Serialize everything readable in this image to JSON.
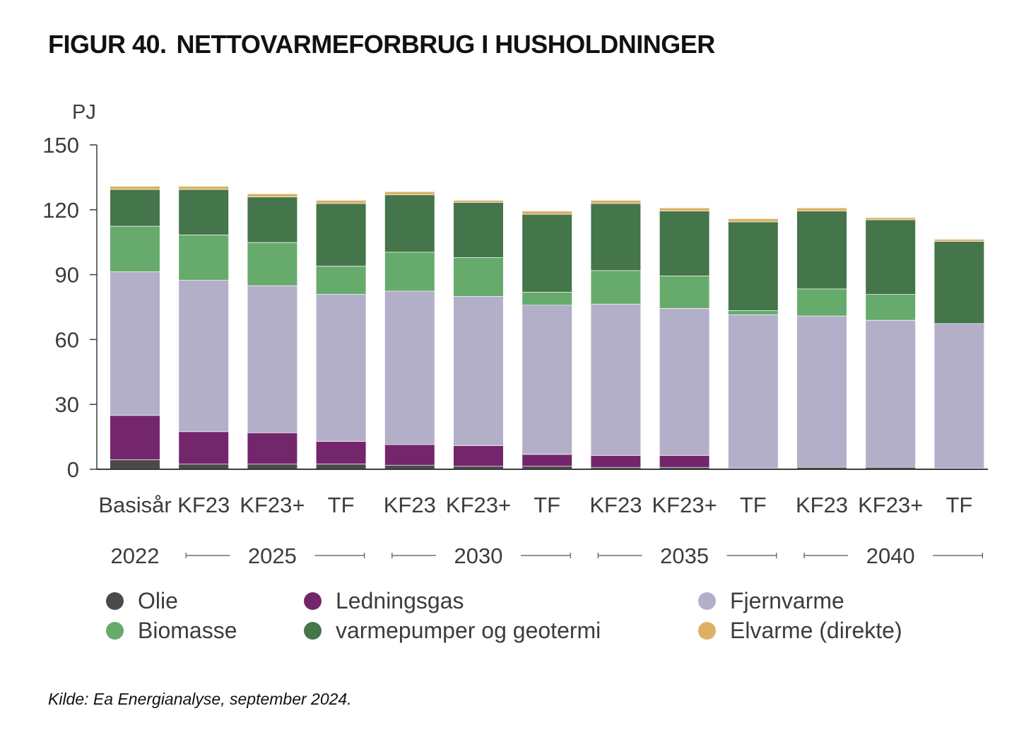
{
  "title": {
    "figure": "FIGUR 40.",
    "text": "NETTOVARMEFORBRUG I HUSHOLDNINGER"
  },
  "source": "Kilde: Ea Energianalyse, september 2024.",
  "colors": {
    "Olie": "#4a4a4a",
    "Ledningsgas": "#74266c",
    "Fjernvarme": "#b3afc9",
    "Biomasse": "#67ab6c",
    "varmepumper og geotermi": "#45754a",
    "Elvarme (direkte)": "#ddb068",
    "axis": "#3c3c3c",
    "group_line": "#555555"
  },
  "chart_data": {
    "type": "bar",
    "stacked": true,
    "ylabel": "PJ",
    "ylim": [
      0,
      150
    ],
    "yticks": [
      "0",
      "30",
      "60",
      "90",
      "120",
      "150"
    ],
    "categories": [
      "Basisår",
      "KF23",
      "KF23+",
      "TF",
      "KF23",
      "KF23+",
      "TF",
      "KF23",
      "KF23+",
      "TF",
      "KF23",
      "KF23+",
      "TF"
    ],
    "groups": [
      {
        "label": "2022",
        "span": [
          0,
          0
        ]
      },
      {
        "label": "2025",
        "span": [
          1,
          3
        ]
      },
      {
        "label": "2030",
        "span": [
          4,
          6
        ]
      },
      {
        "label": "2035",
        "span": [
          7,
          9
        ]
      },
      {
        "label": "2040",
        "span": [
          10,
          12
        ]
      }
    ],
    "series": [
      {
        "name": "Olie",
        "values": [
          4.5,
          2.5,
          2.5,
          2.5,
          2,
          1.5,
          1.5,
          1,
          1,
          0.5,
          1,
          1,
          0.5
        ]
      },
      {
        "name": "Ledningsgas",
        "values": [
          20.5,
          15,
          14.5,
          10.5,
          9.5,
          9.5,
          5.5,
          5.5,
          5.5,
          0,
          0,
          0,
          0
        ]
      },
      {
        "name": "Fjernvarme",
        "values": [
          66.5,
          70,
          68,
          68,
          71,
          69,
          69,
          70,
          68,
          71,
          70,
          68,
          67
        ]
      },
      {
        "name": "Biomasse",
        "values": [
          21,
          21,
          20,
          13,
          18,
          18,
          6,
          15.5,
          15,
          2,
          12.5,
          12,
          0
        ]
      },
      {
        "name": "varmepumper og geotermi",
        "values": [
          17,
          21,
          21,
          29,
          26.5,
          25.5,
          36,
          31,
          30,
          41,
          36,
          34.5,
          38
        ]
      },
      {
        "name": "Elvarme (direkte)",
        "values": [
          1.5,
          1.5,
          1.5,
          1.5,
          1.5,
          1,
          1.5,
          1.5,
          1.5,
          1.5,
          1.5,
          1,
          1
        ]
      }
    ],
    "legend_position": "bottom",
    "grid": false
  }
}
